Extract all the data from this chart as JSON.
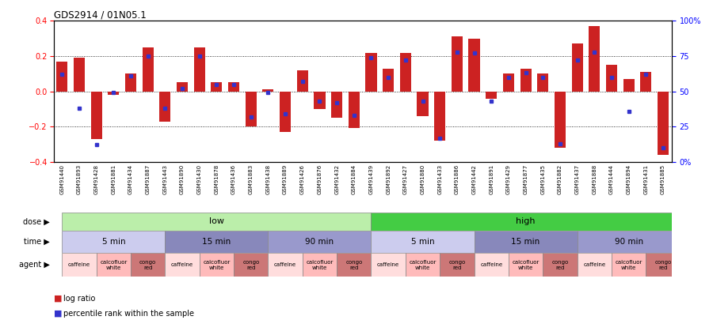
{
  "title": "GDS2914 / 01N05.1",
  "samples": [
    "GSM91440",
    "GSM91893",
    "GSM91428",
    "GSM91881",
    "GSM91434",
    "GSM91887",
    "GSM91443",
    "GSM91890",
    "GSM91430",
    "GSM91878",
    "GSM91436",
    "GSM91883",
    "GSM91438",
    "GSM91889",
    "GSM91426",
    "GSM91876",
    "GSM91432",
    "GSM91884",
    "GSM91439",
    "GSM91892",
    "GSM91427",
    "GSM91880",
    "GSM91433",
    "GSM91886",
    "GSM91442",
    "GSM91891",
    "GSM91429",
    "GSM91877",
    "GSM91435",
    "GSM91882",
    "GSM91437",
    "GSM91888",
    "GSM91444",
    "GSM91894",
    "GSM91431",
    "GSM91885"
  ],
  "log_ratio": [
    0.17,
    0.19,
    -0.27,
    -0.02,
    0.1,
    0.25,
    -0.17,
    0.05,
    0.25,
    0.05,
    0.05,
    -0.2,
    0.01,
    -0.23,
    0.12,
    -0.1,
    -0.15,
    -0.21,
    0.22,
    0.13,
    0.22,
    -0.14,
    -0.28,
    0.31,
    0.3,
    -0.04,
    0.1,
    0.13,
    0.1,
    -0.32,
    0.27,
    0.37,
    0.15,
    0.07,
    0.11,
    -0.36
  ],
  "pct_rank": [
    62,
    38,
    12,
    49,
    61,
    75,
    38,
    52,
    75,
    55,
    55,
    32,
    49,
    34,
    57,
    43,
    42,
    33,
    74,
    60,
    72,
    43,
    17,
    78,
    77,
    43,
    60,
    63,
    60,
    13,
    72,
    78,
    60,
    36,
    62,
    10
  ],
  "dose_groups": [
    {
      "label": "low",
      "start": 0,
      "end": 18,
      "color": "#bbeeaa"
    },
    {
      "label": "high",
      "start": 18,
      "end": 36,
      "color": "#44cc44"
    }
  ],
  "time_groups": [
    {
      "label": "5 min",
      "start": 0,
      "end": 6,
      "color": "#ccccee"
    },
    {
      "label": "15 min",
      "start": 6,
      "end": 12,
      "color": "#8888bb"
    },
    {
      "label": "90 min",
      "start": 12,
      "end": 18,
      "color": "#9999cc"
    },
    {
      "label": "5 min",
      "start": 18,
      "end": 24,
      "color": "#ccccee"
    },
    {
      "label": "15 min",
      "start": 24,
      "end": 30,
      "color": "#8888bb"
    },
    {
      "label": "90 min",
      "start": 30,
      "end": 36,
      "color": "#9999cc"
    }
  ],
  "agent_groups": [
    {
      "label": "caffeine",
      "start": 0,
      "end": 2,
      "color": "#ffdddd"
    },
    {
      "label": "calcofluor\nwhite",
      "start": 2,
      "end": 4,
      "color": "#ffbbbb"
    },
    {
      "label": "congo\nred",
      "start": 4,
      "end": 6,
      "color": "#cc7777"
    },
    {
      "label": "caffeine",
      "start": 6,
      "end": 8,
      "color": "#ffdddd"
    },
    {
      "label": "calcofluor\nwhite",
      "start": 8,
      "end": 10,
      "color": "#ffbbbb"
    },
    {
      "label": "congo\nred",
      "start": 10,
      "end": 12,
      "color": "#cc7777"
    },
    {
      "label": "caffeine",
      "start": 12,
      "end": 14,
      "color": "#ffdddd"
    },
    {
      "label": "calcofluor\nwhite",
      "start": 14,
      "end": 16,
      "color": "#ffbbbb"
    },
    {
      "label": "congo\nred",
      "start": 16,
      "end": 18,
      "color": "#cc7777"
    },
    {
      "label": "caffeine",
      "start": 18,
      "end": 20,
      "color": "#ffdddd"
    },
    {
      "label": "calcofluor\nwhite",
      "start": 20,
      "end": 22,
      "color": "#ffbbbb"
    },
    {
      "label": "congo\nred",
      "start": 22,
      "end": 24,
      "color": "#cc7777"
    },
    {
      "label": "caffeine",
      "start": 24,
      "end": 26,
      "color": "#ffdddd"
    },
    {
      "label": "calcofluor\nwhite",
      "start": 26,
      "end": 28,
      "color": "#ffbbbb"
    },
    {
      "label": "congo\nred",
      "start": 28,
      "end": 30,
      "color": "#cc7777"
    },
    {
      "label": "caffeine",
      "start": 30,
      "end": 32,
      "color": "#ffdddd"
    },
    {
      "label": "calcofluor\nwhite",
      "start": 32,
      "end": 34,
      "color": "#ffbbbb"
    },
    {
      "label": "congo\nred",
      "start": 34,
      "end": 36,
      "color": "#cc7777"
    }
  ],
  "xtick_bg_color": "#cccccc",
  "bar_color": "#cc2222",
  "dot_color": "#3333cc",
  "ylim": [
    -0.4,
    0.4
  ],
  "yticks": [
    -0.4,
    -0.2,
    0.0,
    0.2,
    0.4
  ],
  "y2ticks": [
    0,
    25,
    50,
    75,
    100
  ],
  "y2ticklabels": [
    "0%",
    "25",
    "50",
    "75",
    "100%"
  ],
  "hlines": [
    -0.2,
    0.0,
    0.2
  ],
  "legend_log_ratio": "log ratio",
  "legend_pct": "percentile rank within the sample",
  "row_labels": [
    "dose",
    "time",
    "agent"
  ]
}
